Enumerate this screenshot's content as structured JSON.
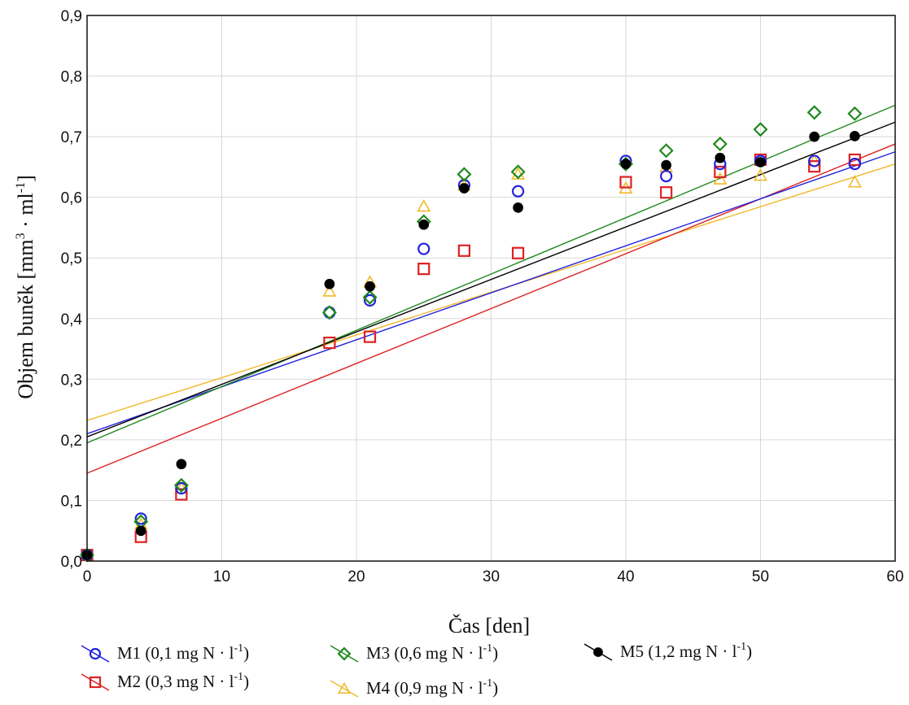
{
  "chart_data": {
    "type": "scatter",
    "xlabel": "Čas [den]",
    "ylabel_main": "Objem buněk [mm",
    "ylabel_sup1": "3",
    "ylabel_mid": " · ml",
    "ylabel_sup2": "-1",
    "ylabel_end": "]",
    "xlim": [
      0,
      60
    ],
    "ylim": [
      0,
      0.9
    ],
    "x_ticks": [
      0,
      10,
      20,
      30,
      40,
      50,
      60
    ],
    "x_tick_labels": [
      "0",
      "10",
      "20",
      "30",
      "40",
      "50",
      "60"
    ],
    "y_ticks": [
      0,
      0.1,
      0.2,
      0.3,
      0.4,
      0.5,
      0.6,
      0.7,
      0.8,
      0.9
    ],
    "y_tick_labels": [
      "0,0",
      "0,1",
      "0,2",
      "0,3",
      "0,4",
      "0,5",
      "0,6",
      "0,7",
      "0,8",
      "0,9"
    ],
    "grid": true,
    "legend_position": "bottom",
    "series": [
      {
        "name_main": "M1 (0,1 mg N · l",
        "name_sup": "-1",
        "name_end": ")",
        "color": "#2222dd",
        "marker": "circle",
        "x": [
          0,
          4,
          7,
          18,
          21,
          25,
          28,
          32,
          40,
          43,
          47,
          50,
          54,
          57
        ],
        "y": [
          0.01,
          0.07,
          0.12,
          0.41,
          0.43,
          0.515,
          0.62,
          0.61,
          0.66,
          0.635,
          0.655,
          0.66,
          0.66,
          0.655
        ],
        "fit": [
          0.21,
          0.675
        ]
      },
      {
        "name_main": "M2 (0,3 mg N · l",
        "name_sup": "-1",
        "name_end": ")",
        "color": "#dd2222",
        "marker": "square",
        "x": [
          0,
          4,
          7,
          18,
          21,
          25,
          28,
          32,
          40,
          43,
          47,
          50,
          54,
          57
        ],
        "y": [
          0.01,
          0.04,
          0.11,
          0.36,
          0.37,
          0.482,
          0.512,
          0.508,
          0.625,
          0.608,
          0.642,
          0.662,
          0.651,
          0.662
        ],
        "fit": [
          0.145,
          0.688
        ]
      },
      {
        "name_main": "M3 (0,6 mg N · l",
        "name_sup": "-1",
        "name_end": ")",
        "color": "#1f8a1f",
        "marker": "diamond",
        "x": [
          0,
          4,
          7,
          18,
          21,
          25,
          28,
          32,
          40,
          43,
          47,
          50,
          54,
          57
        ],
        "y": [
          0.01,
          0.065,
          0.125,
          0.41,
          0.435,
          0.56,
          0.638,
          0.642,
          0.655,
          0.677,
          0.688,
          0.712,
          0.74,
          0.738
        ],
        "fit": [
          0.195,
          0.752
        ]
      },
      {
        "name_main": "M4 (0,9 mg N · l",
        "name_sup": "-1",
        "name_end": ")",
        "color": "#f2b92a",
        "marker": "triangle",
        "x": [
          0,
          4,
          7,
          18,
          21,
          25,
          28,
          32,
          40,
          43,
          47,
          50,
          54,
          57
        ],
        "y": [
          0.01,
          0.06,
          0.12,
          0.445,
          0.46,
          0.585,
          0.62,
          0.638,
          0.615,
          0.65,
          0.63,
          0.636,
          0.66,
          0.625
        ],
        "fit": [
          0.232,
          0.655
        ]
      },
      {
        "name_main": "M5 (1,2 mg N · l",
        "name_sup": "-1",
        "name_end": ")",
        "color": "#000000",
        "marker": "dot",
        "x": [
          0,
          4,
          7,
          18,
          21,
          25,
          28,
          32,
          40,
          43,
          47,
          50,
          54,
          57
        ],
        "y": [
          0.01,
          0.05,
          0.16,
          0.457,
          0.453,
          0.555,
          0.615,
          0.583,
          0.655,
          0.653,
          0.665,
          0.658,
          0.7,
          0.701
        ],
        "fit": [
          0.205,
          0.724
        ]
      }
    ]
  }
}
